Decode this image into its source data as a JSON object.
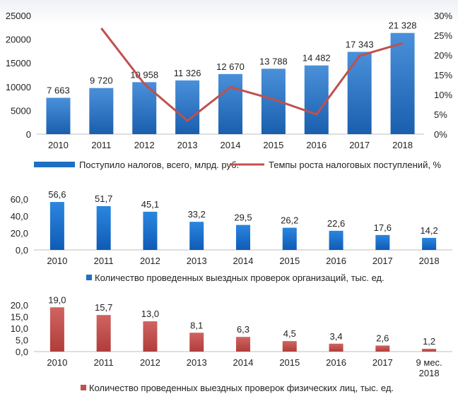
{
  "chart_data": [
    {
      "type": "bar",
      "categories": [
        "2010",
        "2011",
        "2012",
        "2013",
        "2014",
        "2015",
        "2016",
        "2017",
        "2018"
      ],
      "series": [
        {
          "name": "Поступило налогов, всего, млрд. руб.",
          "type": "bar",
          "axis": "left",
          "values": [
            7663,
            9720,
            10958,
            11326,
            12670,
            13788,
            14482,
            17343,
            21328
          ],
          "labels": [
            "7 663",
            "9 720",
            "10 958",
            "11 326",
            "12 670",
            "13 788",
            "14 482",
            "17 343",
            "21 328"
          ],
          "color": "#1f6fc4"
        },
        {
          "name": "Темпы роста налоговых поступлений, %",
          "type": "line",
          "axis": "right",
          "values": [
            null,
            26.8,
            12.7,
            3.4,
            11.9,
            8.8,
            5.0,
            19.8,
            23.0
          ],
          "color": "#c0504d"
        }
      ],
      "yticks": [
        "0",
        "5000",
        "10000",
        "15000",
        "20000",
        "25000"
      ],
      "ylim": [
        0,
        25000
      ],
      "y2ticks": [
        "0%",
        "5%",
        "10%",
        "15%",
        "20%",
        "25%",
        "30%"
      ],
      "y2lim": [
        0,
        30
      ],
      "legend_position": "bottom"
    },
    {
      "type": "bar",
      "categories": [
        "2010",
        "2011",
        "2012",
        "2013",
        "2014",
        "2015",
        "2016",
        "2017",
        "2018"
      ],
      "series": [
        {
          "name": "Количество проведенных выездных проверок организаций, тыс. ед.",
          "values": [
            56.6,
            51.7,
            45.1,
            33.2,
            29.5,
            26.2,
            22.6,
            17.6,
            14.2
          ],
          "labels": [
            "56,6",
            "51,7",
            "45,1",
            "33,2",
            "29,5",
            "26,2",
            "22,6",
            "17,6",
            "14,2"
          ],
          "color": "#1f6fc4"
        }
      ],
      "yticks": [
        "0,0",
        "20,0",
        "40,0",
        "60,0"
      ],
      "ylim": [
        0,
        60
      ],
      "legend_position": "bottom"
    },
    {
      "type": "bar",
      "categories": [
        "2010",
        "2011",
        "2012",
        "2013",
        "2014",
        "2015",
        "2016",
        "2017",
        "9 мес.\n2018"
      ],
      "series": [
        {
          "name": "Количество проведенных выездных проверок физических лиц, тыс. ед.",
          "values": [
            19.0,
            15.7,
            13.0,
            8.1,
            6.3,
            4.5,
            3.4,
            2.6,
            1.2
          ],
          "labels": [
            "19,0",
            "15,7",
            "13,0",
            "8,1",
            "6,3",
            "4,5",
            "3,4",
            "2,6",
            "1,2"
          ],
          "color": "#c0504d"
        }
      ],
      "yticks": [
        "0,0",
        "5,0",
        "10,0",
        "15,0",
        "20,0"
      ],
      "ylim": [
        0,
        20
      ],
      "legend_position": "bottom"
    }
  ]
}
